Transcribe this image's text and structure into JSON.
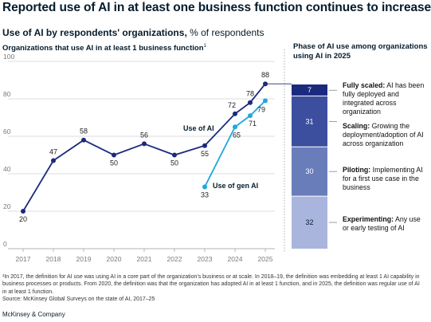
{
  "headline": "Reported use of AI in at least one business function continues to increase.",
  "subhead": {
    "bold": "Use of AI by respondents' organizations,",
    "rest": " % of respondents"
  },
  "left_title": {
    "text": "Organizations that use AI in at least 1 business function",
    "sup": "1"
  },
  "right_title": "Phase of AI use among organizations using AI in 2025",
  "phases": [
    {
      "value": "7",
      "name": "Fully scaled:",
      "desc": " AI has been fully deployed and integrated across organization",
      "color": "#1b2a7c"
    },
    {
      "value": "31",
      "name": "Scaling:",
      "desc": " Growing the deployment/adoption of AI across organization",
      "color": "#3c4f9e"
    },
    {
      "value": "30",
      "name": "Piloting:",
      "desc": " Implementing AI for a first use case in the business",
      "color": "#6a7dbb"
    },
    {
      "value": "32",
      "name": "Experimenting:",
      "desc": " Any use or early testing of AI",
      "color": "#a9b5dc"
    }
  ],
  "chart_data": {
    "type": "line",
    "x": [
      "2017",
      "2018",
      "2019",
      "2020",
      "2021",
      "2022",
      "2023",
      "2024",
      "2025"
    ],
    "ylim": [
      0,
      100
    ],
    "yticks": [
      "0",
      "20",
      "40",
      "60",
      "80",
      "100"
    ],
    "series": [
      {
        "name": "Use of AI",
        "color": "#1b2a7c",
        "points": [
          [
            2017,
            20
          ],
          [
            2018,
            47
          ],
          [
            2019,
            58
          ],
          [
            2020,
            50
          ],
          [
            2021,
            56
          ],
          [
            2022,
            50
          ],
          [
            2023,
            55
          ],
          [
            2024,
            72
          ],
          [
            2024.5,
            78
          ],
          [
            2025,
            88
          ]
        ],
        "labels": [
          "20",
          "47",
          "58",
          "50",
          "56",
          "50",
          "55",
          "72",
          "78",
          "88"
        ]
      },
      {
        "name": "Use of gen AI",
        "color": "#1fa8e0",
        "points": [
          [
            2023,
            33
          ],
          [
            2024,
            65
          ],
          [
            2024.5,
            71
          ],
          [
            2025,
            79
          ]
        ],
        "labels": [
          "33",
          "65",
          "71",
          "79"
        ]
      }
    ],
    "stacked_bar": {
      "category": "2025",
      "segments": [
        7,
        31,
        30,
        32
      ]
    }
  },
  "footnote": "¹In 2017, the definition for AI use was using AI in a core part of the organization's business or at scale. In 2018–19, the definition was embedding at least 1 AI capability in business processes or products. From 2020, the definition was that the organization has adopted AI in at least 1 function, and in 2025, the definition was regular use of AI in at least 1 function.\nSource: McKinsey Global Surveys on the state of AI, 2017–25",
  "brand": "McKinsey & Company"
}
